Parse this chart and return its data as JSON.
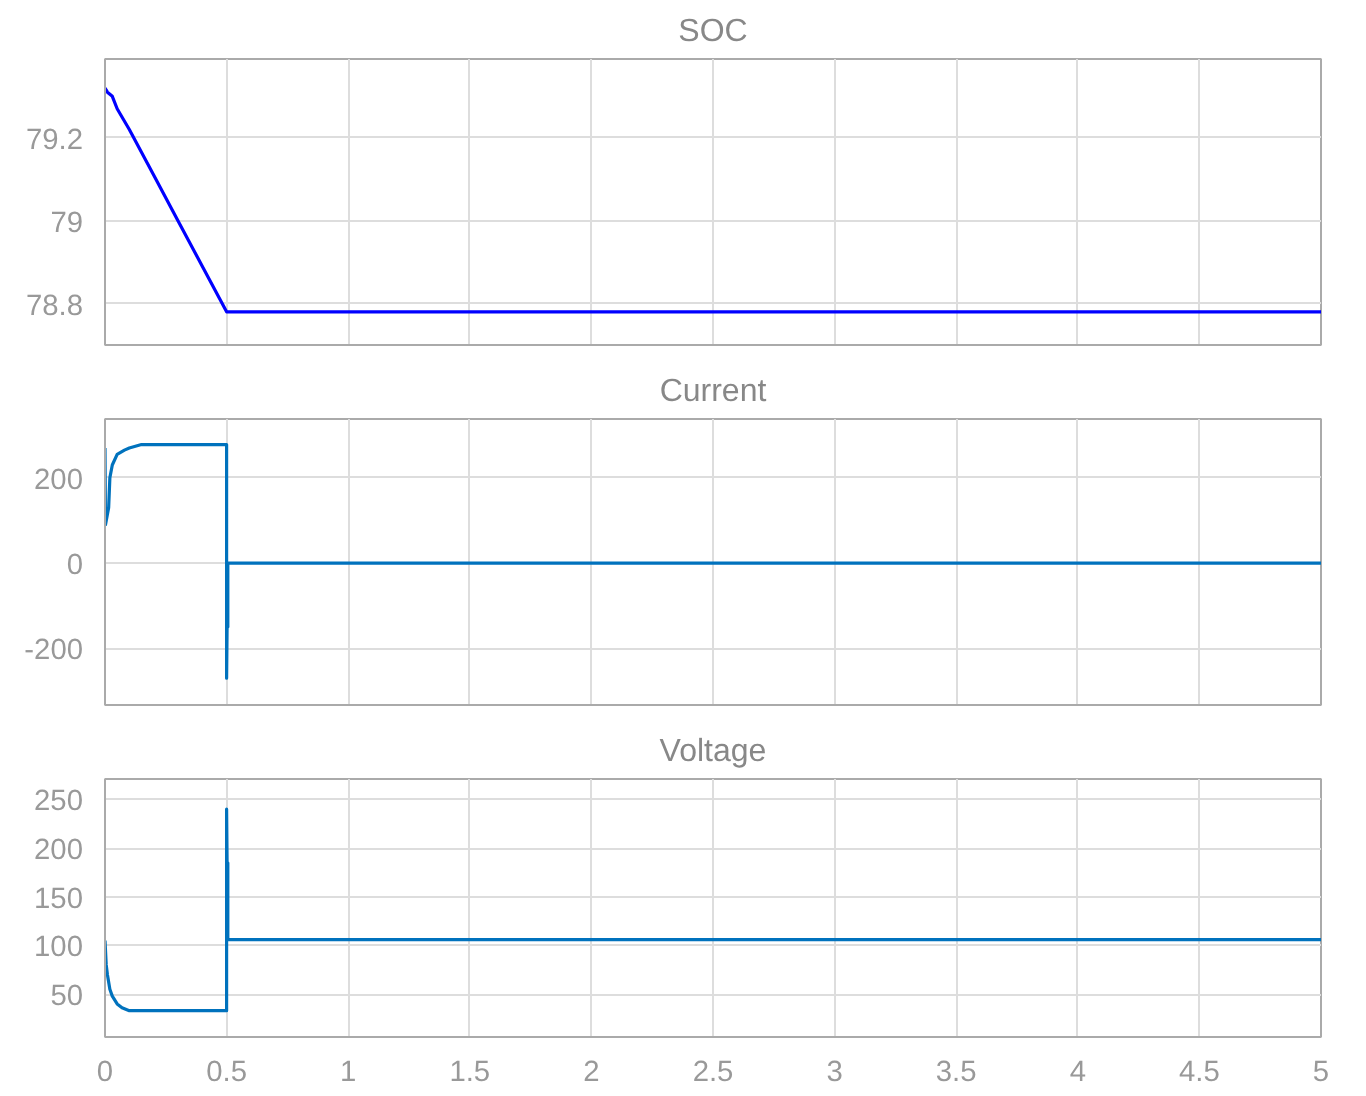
{
  "chart_data": [
    {
      "type": "line",
      "title": "SOC",
      "x": [
        0,
        0.01,
        0.03,
        0.05,
        0.1,
        0.2,
        0.3,
        0.4,
        0.5,
        1,
        2,
        3,
        4,
        5
      ],
      "series": [
        {
          "color": "#0000ff",
          "values": [
            79.32,
            79.31,
            79.3,
            79.27,
            79.22,
            79.11,
            79.0,
            78.89,
            78.78,
            78.78,
            78.78,
            78.78,
            78.78,
            78.78
          ]
        }
      ],
      "xlim": [
        0,
        5
      ],
      "xticks": [
        0,
        0.5,
        1,
        1.5,
        2,
        2.5,
        3,
        3.5,
        4,
        4.5,
        5
      ],
      "ylim": [
        78.7,
        79.39
      ],
      "yticks": [
        78.8,
        79,
        79.2
      ],
      "grid": true,
      "tick_labels": "y"
    },
    {
      "type": "line",
      "title": "Current",
      "x": [
        0,
        0.002,
        0.015,
        0.02,
        0.03,
        0.05,
        0.08,
        0.1,
        0.15,
        0.2,
        0.5,
        0.5,
        0.502,
        0.505,
        0.505,
        0.51,
        1,
        2,
        3,
        4,
        5
      ],
      "series": [
        {
          "color": "#0072bd",
          "values": [
            270,
            90,
            130,
            200,
            230,
            255,
            265,
            270,
            278,
            278,
            278,
            -270,
            -150,
            -150,
            0,
            0,
            0,
            0,
            0,
            0,
            0
          ]
        }
      ],
      "xlim": [
        0,
        5
      ],
      "xticks": [
        0,
        0.5,
        1,
        1.5,
        2,
        2.5,
        3,
        3.5,
        4,
        4.5,
        5
      ],
      "ylim": [
        -333,
        338
      ],
      "yticks": [
        -200,
        0,
        200
      ],
      "grid": true,
      "tick_labels": "y"
    },
    {
      "type": "line",
      "title": "Voltage",
      "x": [
        0,
        0.005,
        0.01,
        0.02,
        0.03,
        0.05,
        0.07,
        0.1,
        0.2,
        0.5,
        0.5,
        0.502,
        0.505,
        0.505,
        1,
        2,
        3,
        4,
        5
      ],
      "series": [
        {
          "color": "#0072bd",
          "values": [
            105,
            80,
            70,
            55,
            48,
            40,
            36,
            33,
            33,
            33,
            240,
            185,
            185,
            106,
            106,
            106,
            106,
            106,
            106
          ]
        }
      ],
      "xlim": [
        0,
        5
      ],
      "xticks": [
        0,
        0.5,
        1,
        1.5,
        2,
        2.5,
        3,
        3.5,
        4,
        4.5,
        5
      ],
      "ylim": [
        6,
        271
      ],
      "yticks": [
        50,
        100,
        150,
        200,
        250
      ],
      "grid": true
    }
  ]
}
